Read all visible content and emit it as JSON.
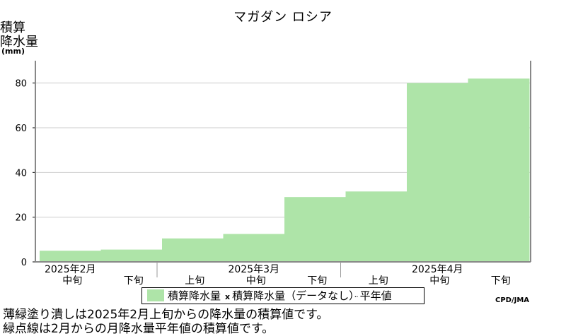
{
  "chart_data": {
    "type": "bar",
    "title": "マガダン ロシア",
    "ylabel_lines": [
      "積算",
      "降水量",
      "(mm)"
    ],
    "xlabel": "",
    "ylim": [
      0,
      90
    ],
    "yticks": [
      0,
      20,
      40,
      60,
      80
    ],
    "grid": true,
    "categories": [
      "2025年2月 中旬",
      "2025年2月 下旬",
      "2025年3月 上旬",
      "2025年3月 中旬",
      "2025年3月 下旬",
      "2025年4月 上旬",
      "2025年4月 中旬",
      "2025年4月 下旬"
    ],
    "tick_labels": [
      "中旬",
      "下旬",
      "上旬",
      "中旬",
      "下旬",
      "上旬",
      "中旬",
      "下旬"
    ],
    "month_labels": [
      "2025年2月",
      "2025年3月",
      "2025年4月"
    ],
    "series": [
      {
        "name": "積算降水量",
        "values": [
          5,
          5.5,
          10.5,
          12.5,
          29,
          31.5,
          80,
          82
        ]
      }
    ],
    "legend": {
      "placement": "bottom",
      "entries": [
        "積算降水量",
        "積算降水量（データなし）",
        "平年値"
      ]
    },
    "colors": {
      "bar": "#aee4a8",
      "grid": "#cccccc",
      "axis": "#888888"
    }
  },
  "credit": "CPD/JMA",
  "notes": [
    "薄緑塗り潰しは2025年2月上旬からの降水量の積算値です。",
    "緑点線は2月からの月降水量平年値の積算値です。"
  ]
}
